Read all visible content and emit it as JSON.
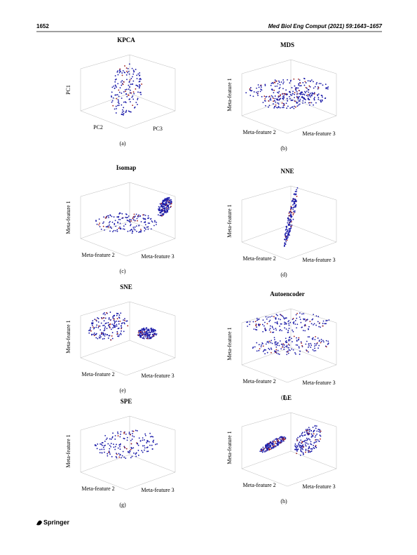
{
  "header": {
    "page_number": "1652",
    "journal": "Med Biol Eng Comput (2021) 59:1643–1657"
  },
  "panels": [
    {
      "title": "KPCA",
      "ylabel": "PC1",
      "xlabel": "PC2",
      "zlabel": "PC3",
      "caption": "(a)"
    },
    {
      "title": "MDS",
      "ylabel": "Meta-feature 1",
      "xlabel": "Meta-feature 2",
      "zlabel": "Meta-feature 3",
      "caption": "(b)"
    },
    {
      "title": "Isomap",
      "ylabel": "Meta-feature 1",
      "xlabel": "Meta-feature 2",
      "zlabel": "Meta-feature 3",
      "caption": "(c)"
    },
    {
      "title": "NNE",
      "ylabel": "Meta-feature 1",
      "xlabel": "Meta-feature 2",
      "zlabel": "Meta-feature 3",
      "caption": "(d)"
    },
    {
      "title": "SNE",
      "ylabel": "Meta-feature 1",
      "xlabel": "Meta-feature 2",
      "zlabel": "Meta-feature 3",
      "caption": "(e)"
    },
    {
      "title": "Autoencoder",
      "ylabel": "Meta-feature 1",
      "xlabel": "Meta-feature 2",
      "zlabel": "Meta-feature 3",
      "caption": "(f)"
    },
    {
      "title": "SPE",
      "ylabel": "Meta-feature 1",
      "xlabel": "Meta-feature 2",
      "zlabel": "Meta-feature 3",
      "caption": "(g)"
    },
    {
      "title": "LE",
      "ylabel": "Meta-feature 1",
      "xlabel": "Meta-feature 2",
      "zlabel": "Meta-feature 3",
      "caption": "(h)"
    }
  ],
  "footer": {
    "publisher": "Springer"
  }
}
